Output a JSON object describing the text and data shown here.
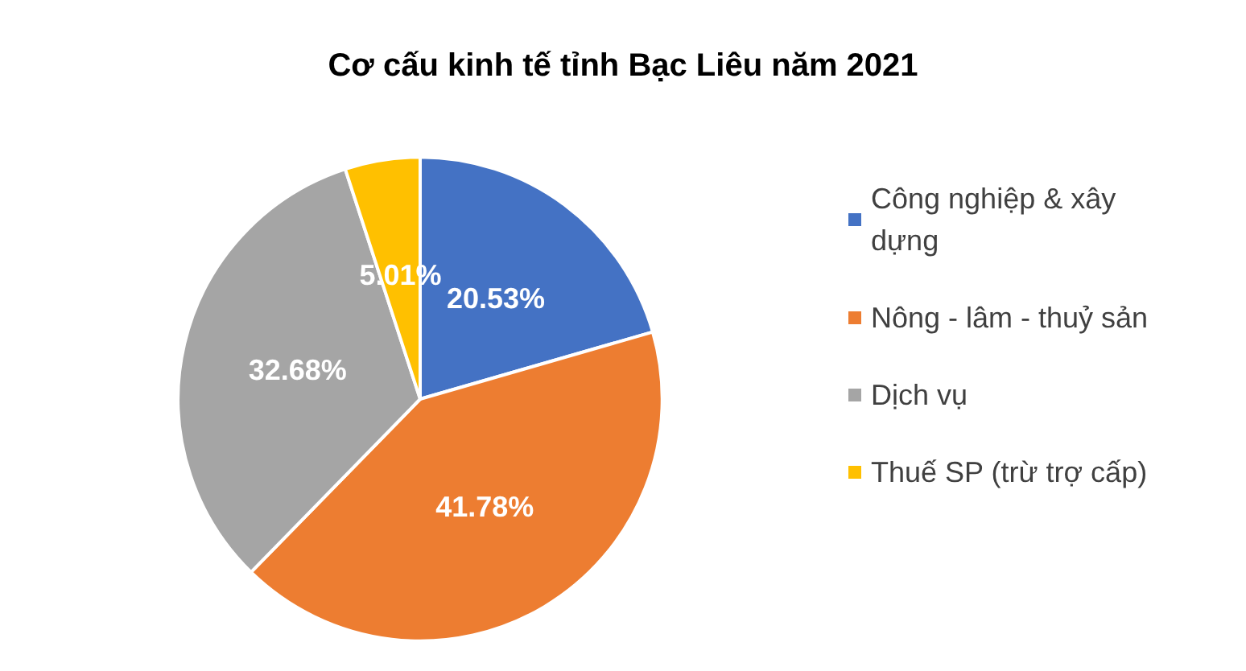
{
  "chart_data": {
    "type": "pie",
    "title": "Cơ cấu kinh tế tỉnh Bạc Liêu năm 2021",
    "categories": [
      "Công nghiệp & xây dựng",
      "Nông - lâm - thuỷ sản",
      "Dịch vụ",
      "Thuế SP (trừ trợ cấp)"
    ],
    "values": [
      20.53,
      41.78,
      32.68,
      5.01
    ],
    "colors": [
      "#4472c4",
      "#ed7d31",
      "#a5a5a5",
      "#ffc000"
    ],
    "value_labels": [
      "20.53%",
      "41.78%",
      "32.68%",
      "5.01%"
    ],
    "legend": "right"
  }
}
